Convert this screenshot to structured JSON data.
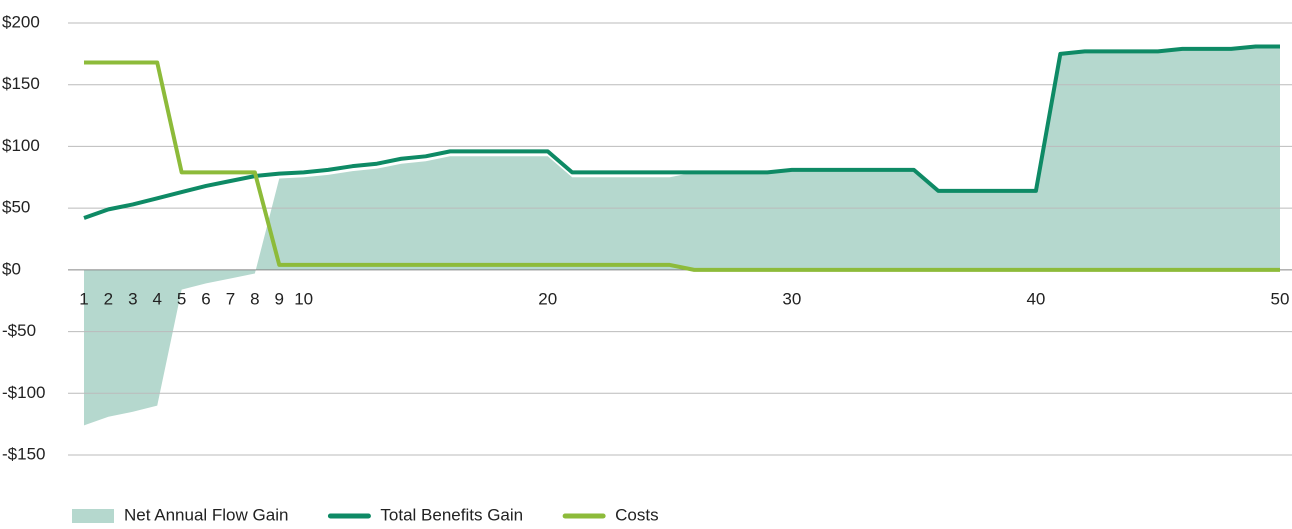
{
  "chart_data": {
    "type": "line",
    "x": [
      1,
      2,
      3,
      4,
      5,
      6,
      7,
      8,
      9,
      10,
      11,
      12,
      13,
      14,
      15,
      16,
      17,
      18,
      19,
      20,
      21,
      22,
      23,
      24,
      25,
      26,
      27,
      28,
      29,
      30,
      31,
      32,
      33,
      34,
      35,
      36,
      37,
      38,
      39,
      40,
      41,
      42,
      43,
      44,
      45,
      46,
      47,
      48,
      49,
      50
    ],
    "xlim": [
      1,
      50
    ],
    "xticks": [
      1,
      2,
      3,
      4,
      5,
      6,
      7,
      8,
      9,
      10,
      20,
      30,
      40,
      50
    ],
    "ylim": [
      -150,
      200
    ],
    "yticks": [
      {
        "value": -150,
        "label": "-$150"
      },
      {
        "value": -100,
        "label": "-$100"
      },
      {
        "value": -50,
        "label": "-$50"
      },
      {
        "value": 0,
        "label": "$0"
      },
      {
        "value": 50,
        "label": "$50"
      },
      {
        "value": 100,
        "label": "$100"
      },
      {
        "value": 150,
        "label": "$150"
      },
      {
        "value": 200,
        "label": "$200"
      }
    ],
    "grid": true,
    "legend": "bottom-left",
    "series": [
      {
        "name": "Net Annual Flow Gain",
        "type": "area",
        "color": "#b5d8ce",
        "values": [
          -126,
          -119,
          -115,
          -110,
          -16,
          -11,
          -7,
          -3,
          74,
          75,
          77,
          80,
          82,
          86,
          88,
          92,
          92,
          92,
          92,
          92,
          75,
          75,
          75,
          75,
          75,
          79,
          79,
          79,
          79,
          81,
          81,
          81,
          81,
          81,
          81,
          64,
          64,
          64,
          64,
          64,
          175,
          177,
          177,
          177,
          177,
          179,
          179,
          179,
          181,
          181
        ]
      },
      {
        "name": "Total Benefits Gain",
        "type": "line",
        "color": "#0e8a65",
        "values": [
          42,
          49,
          53,
          58,
          63,
          68,
          72,
          76,
          78,
          79,
          81,
          84,
          86,
          90,
          92,
          96,
          96,
          96,
          96,
          96,
          79,
          79,
          79,
          79,
          79,
          79,
          79,
          79,
          79,
          81,
          81,
          81,
          81,
          81,
          81,
          64,
          64,
          64,
          64,
          64,
          175,
          177,
          177,
          177,
          177,
          179,
          179,
          179,
          181,
          181
        ]
      },
      {
        "name": "Costs",
        "type": "line",
        "color": "#8dbb3a",
        "values": [
          168,
          168,
          168,
          168,
          79,
          79,
          79,
          79,
          4,
          4,
          4,
          4,
          4,
          4,
          4,
          4,
          4,
          4,
          4,
          4,
          4,
          4,
          4,
          4,
          4,
          0,
          0,
          0,
          0,
          0,
          0,
          0,
          0,
          0,
          0,
          0,
          0,
          0,
          0,
          0,
          0,
          0,
          0,
          0,
          0,
          0,
          0,
          0,
          0,
          0
        ]
      }
    ]
  }
}
